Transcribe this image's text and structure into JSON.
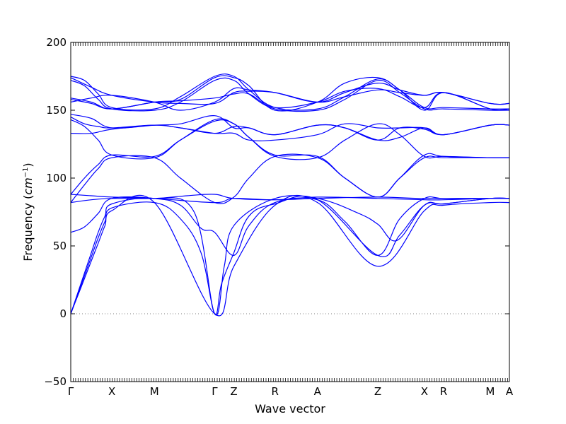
{
  "chart_data": {
    "type": "line",
    "title": "",
    "xlabel": "Wave vector",
    "ylabel": "Frequency (",
    "ylabel_unit_base": "cm",
    "ylabel_unit_exp": "−1",
    "ylabel_close": ")",
    "ylim": [
      -50,
      200
    ],
    "yticks": [
      -50,
      0,
      50,
      100,
      150,
      200
    ],
    "zero_line": true,
    "grid": false,
    "legend": "none",
    "line_color": "#0000ff",
    "xlim": [
      0,
      3.2
    ],
    "xticks": [
      {
        "label": "Γ",
        "x": 0.0
      },
      {
        "label": "X",
        "x": 0.3
      },
      {
        "label": "M",
        "x": 0.61
      },
      {
        "label": "Γ",
        "x": 1.05
      },
      {
        "label": "Z",
        "x": 1.19
      },
      {
        "label": "R",
        "x": 1.49
      },
      {
        "label": "A",
        "x": 1.8
      },
      {
        "label": "Z",
        "x": 2.24
      },
      {
        "label": "X",
        "x": 2.58
      },
      {
        "label": "R",
        "x": 2.72
      },
      {
        "label": "M",
        "x": 3.06
      },
      {
        "label": "A",
        "x": 3.2
      }
    ],
    "series": [
      {
        "x": [
          0,
          0.05,
          0.1,
          0.15,
          0.2,
          0.25,
          0.3,
          0.61,
          1.05,
          1.19,
          1.49,
          1.8,
          2.24,
          2.58,
          2.72,
          3.06,
          3.2
        ],
        "values": [
          0,
          13,
          26,
          39,
          52,
          65,
          76,
          82,
          0,
          35,
          80,
          82,
          35,
          76,
          80,
          82,
          82
        ]
      },
      {
        "x": [
          0,
          0.05,
          0.1,
          0.15,
          0.2,
          0.25,
          0.3,
          0.61,
          0.8,
          0.95,
          1.05,
          1.1,
          1.19,
          1.3,
          1.49,
          1.8,
          2.24,
          2.4,
          2.58,
          2.72,
          3.06,
          3.2
        ],
        "values": [
          0,
          14,
          28,
          42,
          56,
          68,
          78,
          82,
          70,
          45,
          0,
          22,
          45,
          72,
          81,
          84,
          43,
          58,
          80,
          81,
          85,
          85
        ]
      },
      {
        "x": [
          0,
          0.05,
          0.1,
          0.15,
          0.2,
          0.25,
          0.3,
          0.61,
          0.9,
          1.05,
          1.12,
          1.19,
          1.49,
          1.8,
          2.1,
          2.24,
          2.38,
          2.58,
          2.72,
          3.06,
          3.2
        ],
        "values": [
          0,
          15,
          30,
          45,
          60,
          72,
          81,
          85,
          75,
          0,
          35,
          65,
          85,
          85,
          74,
          66,
          54,
          80,
          81,
          85,
          85
        ]
      },
      {
        "x": [
          0,
          0.1,
          0.2,
          0.3,
          0.61,
          0.8,
          0.95,
          1.05,
          1.19,
          1.3,
          1.49,
          1.8,
          2.0,
          2.24,
          2.4,
          2.58,
          2.72,
          3.06,
          3.2
        ],
        "values": [
          60,
          64,
          74,
          85,
          85,
          80,
          63,
          60,
          43,
          65,
          82,
          84,
          68,
          43,
          70,
          85,
          85,
          85,
          85
        ]
      },
      {
        "x": [
          0,
          0.15,
          0.3,
          0.61,
          0.85,
          1.05,
          1.19,
          1.49,
          1.8,
          2.24,
          2.58,
          3.2
        ],
        "values": [
          82,
          84,
          85,
          85,
          87,
          88,
          85,
          84,
          85,
          86,
          85,
          85
        ]
      },
      {
        "x": [
          0,
          0.15,
          0.3,
          0.61,
          1.05,
          1.19,
          1.49,
          1.8,
          2.24,
          2.58,
          2.72,
          3.06,
          3.2
        ],
        "values": [
          88,
          87,
          86,
          85,
          82,
          85,
          84,
          86,
          85,
          84,
          84,
          85,
          85
        ]
      },
      {
        "x": [
          0,
          0.1,
          0.2,
          0.3,
          0.61,
          0.8,
          1.05,
          1.19,
          1.3,
          1.49,
          1.8,
          2.0,
          2.24,
          2.4,
          2.58,
          2.72,
          3.06,
          3.2
        ],
        "values": [
          82,
          95,
          107,
          115,
          115,
          100,
          82,
          86,
          100,
          116,
          115,
          100,
          86,
          100,
          115,
          115,
          115,
          115
        ]
      },
      {
        "x": [
          0,
          0.1,
          0.2,
          0.3,
          0.61,
          0.8,
          1.05,
          1.19,
          1.3,
          1.49,
          1.8,
          2.0,
          2.24,
          2.4,
          2.58,
          2.72,
          3.06,
          3.2
        ],
        "values": [
          88,
          100,
          110,
          117,
          116,
          128,
          142,
          140,
          130,
          117,
          116,
          100,
          86,
          100,
          117,
          116,
          115,
          115
        ]
      },
      {
        "x": [
          0,
          0.1,
          0.2,
          0.3,
          0.61,
          0.8,
          1.05,
          1.19,
          1.3,
          1.49,
          1.8,
          2.0,
          2.24,
          2.4,
          2.58,
          2.72,
          3.06,
          3.2
        ],
        "values": [
          143,
          138,
          128,
          117,
          115,
          128,
          143,
          140,
          130,
          116,
          115,
          128,
          140,
          132,
          116,
          116,
          115,
          115
        ]
      },
      {
        "x": [
          0,
          0.1,
          0.2,
          0.3,
          0.61,
          0.8,
          1.05,
          1.19,
          1.3,
          1.49,
          1.8,
          2.0,
          2.24,
          2.4,
          2.58,
          2.72,
          3.06,
          3.2
        ],
        "values": [
          145,
          140,
          138,
          137,
          139,
          137,
          133,
          133,
          128,
          128,
          132,
          140,
          137,
          137,
          137,
          132,
          139,
          139
        ]
      },
      {
        "x": [
          0,
          0.15,
          0.3,
          0.61,
          0.8,
          1.05,
          1.19,
          1.3,
          1.49,
          1.8,
          2.0,
          2.24,
          2.4,
          2.58,
          2.72,
          3.06,
          3.2
        ],
        "values": [
          133,
          133,
          136,
          139,
          137,
          133,
          138,
          137,
          132,
          139,
          137,
          128,
          130,
          137,
          132,
          139,
          139
        ]
      },
      {
        "x": [
          0,
          0.15,
          0.3,
          0.61,
          0.8,
          1.05,
          1.19,
          1.3,
          1.49,
          1.8,
          2.0,
          2.24,
          2.4,
          2.58,
          2.72,
          3.06,
          3.2
        ],
        "values": [
          147,
          144,
          137,
          139,
          140,
          146,
          137,
          137,
          132,
          139,
          137,
          128,
          137,
          136,
          132,
          139,
          139
        ]
      },
      {
        "x": [
          0,
          0.1,
          0.2,
          0.3,
          0.61,
          0.8,
          1.05,
          1.19,
          1.3,
          1.49,
          1.8,
          2.0,
          2.24,
          2.4,
          2.58,
          2.72,
          3.06,
          3.2
        ],
        "values": [
          175,
          172,
          162,
          152,
          151,
          160,
          175,
          175,
          165,
          152,
          151,
          160,
          173,
          165,
          152,
          152,
          151,
          151
        ]
      },
      {
        "x": [
          0,
          0.1,
          0.2,
          0.3,
          0.61,
          0.8,
          1.05,
          1.19,
          1.3,
          1.49,
          1.8,
          2.0,
          2.24,
          2.4,
          2.58,
          2.72,
          3.06,
          3.2
        ],
        "values": [
          172,
          168,
          158,
          151,
          150,
          156,
          172,
          172,
          162,
          151,
          150,
          158,
          172,
          163,
          151,
          151,
          150,
          150
        ]
      },
      {
        "x": [
          0,
          0.15,
          0.3,
          0.61,
          0.8,
          1.05,
          1.19,
          1.3,
          1.49,
          1.8,
          2.0,
          2.24,
          2.4,
          2.58,
          2.72,
          3.06,
          3.2
        ],
        "values": [
          159,
          156,
          151,
          156,
          157,
          159,
          162,
          162,
          152,
          156,
          164,
          166,
          160,
          152,
          163,
          151,
          151
        ]
      },
      {
        "x": [
          0,
          0.15,
          0.3,
          0.61,
          0.8,
          1.05,
          1.19,
          1.3,
          1.49,
          1.8,
          2.0,
          2.24,
          2.4,
          2.58,
          2.72,
          3.06,
          3.2
        ],
        "values": [
          156,
          159,
          161,
          156,
          150,
          156,
          166,
          165,
          163,
          156,
          163,
          170,
          165,
          161,
          163,
          155,
          155
        ]
      },
      {
        "x": [
          0,
          0.15,
          0.3,
          0.61,
          0.8,
          1.05,
          1.19,
          1.3,
          1.49,
          1.8,
          2.0,
          2.24,
          2.4,
          2.58,
          2.72,
          3.06,
          3.2
        ],
        "values": [
          174,
          167,
          161,
          156,
          155,
          155,
          163,
          164,
          163,
          156,
          160,
          165,
          163,
          161,
          163,
          155,
          155
        ]
      },
      {
        "x": [
          0,
          0.15,
          0.3,
          0.61,
          0.8,
          1.05,
          1.19,
          1.3,
          1.49,
          1.8,
          2.0,
          2.24,
          2.4,
          2.58,
          2.72,
          3.06,
          3.2
        ],
        "values": [
          158,
          155,
          151,
          156,
          158,
          174,
          174,
          168,
          150,
          156,
          170,
          174,
          165,
          150,
          163,
          151,
          151
        ]
      }
    ]
  }
}
